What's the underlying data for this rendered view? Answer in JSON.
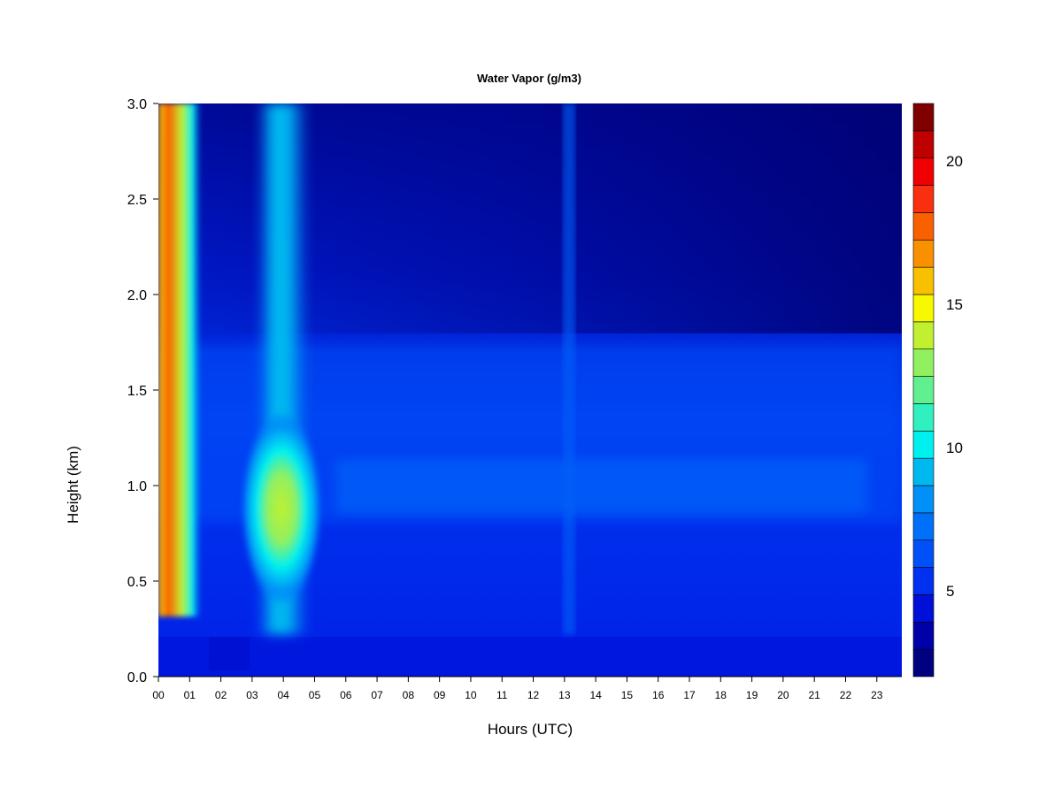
{
  "chart_data": {
    "type": "heatmap",
    "title": "Water Vapor (g/m3)",
    "xlabel": "Hours (UTC)",
    "ylabel": "Height (km)",
    "xlim": [
      0,
      23.8
    ],
    "ylim": [
      0,
      3.0
    ],
    "x_ticks": [
      {
        "value": 0,
        "label": "00"
      },
      {
        "value": 1,
        "label": "01"
      },
      {
        "value": 2,
        "label": "02"
      },
      {
        "value": 3,
        "label": "03"
      },
      {
        "value": 4,
        "label": "04"
      },
      {
        "value": 5,
        "label": "05"
      },
      {
        "value": 6,
        "label": "06"
      },
      {
        "value": 7,
        "label": "07"
      },
      {
        "value": 8,
        "label": "08"
      },
      {
        "value": 9,
        "label": "09"
      },
      {
        "value": 10,
        "label": "10"
      },
      {
        "value": 11,
        "label": "11"
      },
      {
        "value": 12,
        "label": "12"
      },
      {
        "value": 13,
        "label": "13"
      },
      {
        "value": 14,
        "label": "14"
      },
      {
        "value": 15,
        "label": "15"
      },
      {
        "value": 16,
        "label": "16"
      },
      {
        "value": 17,
        "label": "17"
      },
      {
        "value": 18,
        "label": "18"
      },
      {
        "value": 19,
        "label": "19"
      },
      {
        "value": 20,
        "label": "20"
      },
      {
        "value": 21,
        "label": "21"
      },
      {
        "value": 22,
        "label": "22"
      },
      {
        "value": 23,
        "label": "23"
      }
    ],
    "y_ticks": [
      {
        "value": 0.0,
        "label": "0.0"
      },
      {
        "value": 0.5,
        "label": "0.5"
      },
      {
        "value": 1.0,
        "label": "1.0"
      },
      {
        "value": 1.5,
        "label": "1.5"
      },
      {
        "value": 2.0,
        "label": "2.0"
      },
      {
        "value": 2.5,
        "label": "2.5"
      },
      {
        "value": 3.0,
        "label": "3.0"
      }
    ],
    "colorbar": {
      "range": [
        2,
        22
      ],
      "ticks": [
        {
          "value": 5,
          "label": "5"
        },
        {
          "value": 10,
          "label": "10"
        },
        {
          "value": 15,
          "label": "15"
        },
        {
          "value": 20,
          "label": "20"
        }
      ],
      "colors": [
        "#000080",
        "#0000a8",
        "#0010d8",
        "#0030f0",
        "#0050f8",
        "#0070fa",
        "#0090f8",
        "#00b8f0",
        "#00f0f0",
        "#30f0c0",
        "#60f090",
        "#90f060",
        "#c0f030",
        "#f8f800",
        "#f8c000",
        "#f89000",
        "#f86000",
        "#f83010",
        "#f00000",
        "#c00000",
        "#800000"
      ]
    },
    "grid": false
  }
}
